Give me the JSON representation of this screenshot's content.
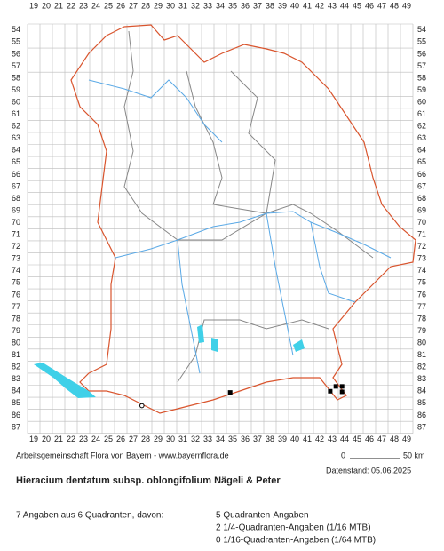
{
  "columns": [
    19,
    20,
    21,
    22,
    23,
    24,
    25,
    26,
    27,
    28,
    29,
    30,
    31,
    32,
    33,
    34,
    35,
    36,
    37,
    38,
    39,
    40,
    41,
    42,
    43,
    44,
    45,
    46,
    47,
    48,
    49
  ],
  "rows": [
    54,
    55,
    56,
    57,
    58,
    59,
    60,
    61,
    62,
    63,
    64,
    65,
    66,
    67,
    68,
    69,
    70,
    71,
    72,
    73,
    74,
    75,
    76,
    77,
    78,
    79,
    80,
    81,
    82,
    83,
    84,
    85,
    86,
    87
  ],
  "markers": [
    {
      "shape": "square",
      "col": 34.8,
      "row": 84.1
    },
    {
      "shape": "square",
      "col": 42.85,
      "row": 84
    },
    {
      "shape": "square",
      "col": 43.3,
      "row": 83.6
    },
    {
      "shape": "square",
      "col": 43.8,
      "row": 83.6
    },
    {
      "shape": "square",
      "col": 43.8,
      "row": 84.05
    },
    {
      "shape": "circle",
      "col": 27.7,
      "row": 85.2
    }
  ],
  "credit": "Arbeitsgemeinschaft Flora von Bayern - www.bayernflora.de",
  "scale": {
    "start": "0",
    "end": "50 km"
  },
  "date": "Datenstand: 05.06.2025",
  "title": "Hieracium dentatum subsp. oblongifolium Nägeli & Peter",
  "summary": "7 Angaben aus 6 Quadranten, davon:",
  "counts": [
    "5 Quadranten-Angaben",
    "2 1/4-Quadranten-Angaben (1/16 MTB)",
    "0 1/16-Quadranten-Angaben (1/64 MTB)"
  ]
}
